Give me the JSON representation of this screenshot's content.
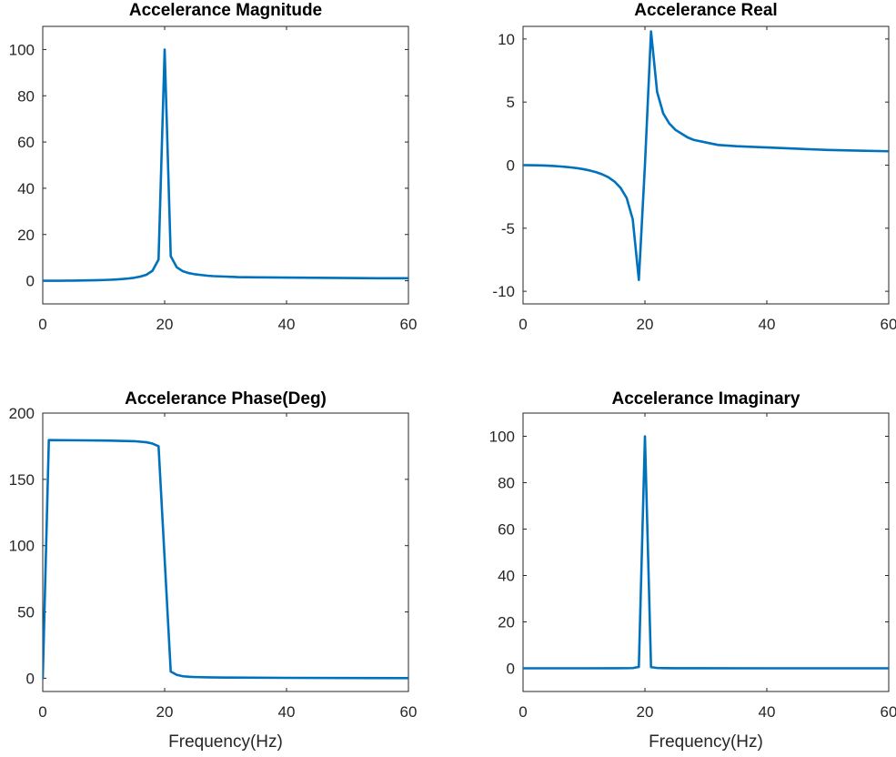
{
  "style": {
    "line_color": "#0072BD",
    "axis_color": "#262626",
    "background": "#ffffff"
  },
  "chart_data": [
    {
      "id": "magnitude",
      "type": "line",
      "title": "Accelerance Magnitude",
      "xlabel": "",
      "ylabel": "",
      "xlim": [
        0,
        60
      ],
      "ylim": [
        -10,
        110
      ],
      "xticks": [
        0,
        20,
        40,
        60
      ],
      "yticks": [
        0,
        20,
        40,
        60,
        80,
        100
      ],
      "grid": false,
      "series": [
        {
          "x": [
            0,
            1,
            2,
            3,
            4,
            5,
            6,
            7,
            8,
            9,
            10,
            11,
            12,
            13,
            14,
            15,
            16,
            17,
            18,
            19,
            20,
            21,
            22,
            23,
            24,
            25,
            26,
            27,
            28,
            30,
            32,
            35,
            40,
            45,
            50,
            55,
            60
          ],
          "y": [
            0,
            0.003,
            0.01,
            0.02,
            0.04,
            0.07,
            0.1,
            0.14,
            0.19,
            0.25,
            0.33,
            0.43,
            0.56,
            0.73,
            0.96,
            1.3,
            1.8,
            2.6,
            4.3,
            9.2,
            100,
            10.6,
            5.8,
            4.1,
            3.3,
            2.8,
            2.5,
            2.2,
            2.0,
            1.8,
            1.6,
            1.5,
            1.4,
            1.3,
            1.2,
            1.1,
            1.1
          ]
        }
      ]
    },
    {
      "id": "real",
      "type": "line",
      "title": "Accelerance Real",
      "xlabel": "",
      "ylabel": "",
      "xlim": [
        0,
        60
      ],
      "ylim": [
        -11,
        11
      ],
      "xticks": [
        0,
        20,
        40,
        60
      ],
      "yticks": [
        -10,
        -5,
        0,
        5,
        10
      ],
      "grid": false,
      "series": [
        {
          "x": [
            0,
            1,
            2,
            3,
            4,
            5,
            6,
            7,
            8,
            9,
            10,
            11,
            12,
            13,
            14,
            15,
            16,
            17,
            18,
            19,
            20,
            21,
            22,
            23,
            24,
            25,
            26,
            27,
            28,
            30,
            32,
            35,
            40,
            45,
            50,
            55,
            60
          ],
          "y": [
            0,
            -0.003,
            -0.01,
            -0.02,
            -0.04,
            -0.07,
            -0.1,
            -0.14,
            -0.19,
            -0.25,
            -0.33,
            -0.43,
            -0.56,
            -0.73,
            -0.96,
            -1.3,
            -1.8,
            -2.6,
            -4.3,
            -9.1,
            0,
            10.6,
            5.8,
            4.1,
            3.3,
            2.8,
            2.5,
            2.2,
            2.0,
            1.8,
            1.6,
            1.5,
            1.4,
            1.3,
            1.2,
            1.15,
            1.1
          ]
        }
      ]
    },
    {
      "id": "phase",
      "type": "line",
      "title": "Accelerance Phase(Deg)",
      "xlabel": "Frequency(Hz)",
      "ylabel": "",
      "xlim": [
        0,
        60
      ],
      "ylim": [
        -10,
        200
      ],
      "xticks": [
        0,
        20,
        40,
        60
      ],
      "yticks": [
        0,
        50,
        100,
        150,
        200
      ],
      "grid": false,
      "series": [
        {
          "x": [
            0,
            1,
            5,
            10,
            15,
            17,
            18,
            19,
            21,
            22,
            23,
            24,
            25,
            27,
            30,
            40,
            50,
            60
          ],
          "y": [
            0,
            179.6,
            179.5,
            179.3,
            178.8,
            178,
            177,
            175,
            5,
            2.5,
            1.5,
            1.1,
            0.9,
            0.7,
            0.5,
            0.3,
            0.2,
            0.1
          ]
        }
      ]
    },
    {
      "id": "imaginary",
      "type": "line",
      "title": "Accelerance Imaginary",
      "xlabel": "Frequency(Hz)",
      "ylabel": "",
      "xlim": [
        0,
        60
      ],
      "ylim": [
        -10,
        110
      ],
      "xticks": [
        0,
        20,
        40,
        60
      ],
      "yticks": [
        0,
        20,
        40,
        60,
        80,
        100
      ],
      "grid": false,
      "series": [
        {
          "x": [
            0,
            5,
            10,
            15,
            17,
            18,
            19,
            20,
            21,
            22,
            23,
            25,
            30,
            40,
            50,
            60
          ],
          "y": [
            0,
            0,
            0,
            0.02,
            0.05,
            0.1,
            0.6,
            100,
            0.5,
            0.15,
            0.08,
            0.04,
            0.02,
            0,
            0,
            0
          ]
        }
      ]
    }
  ]
}
